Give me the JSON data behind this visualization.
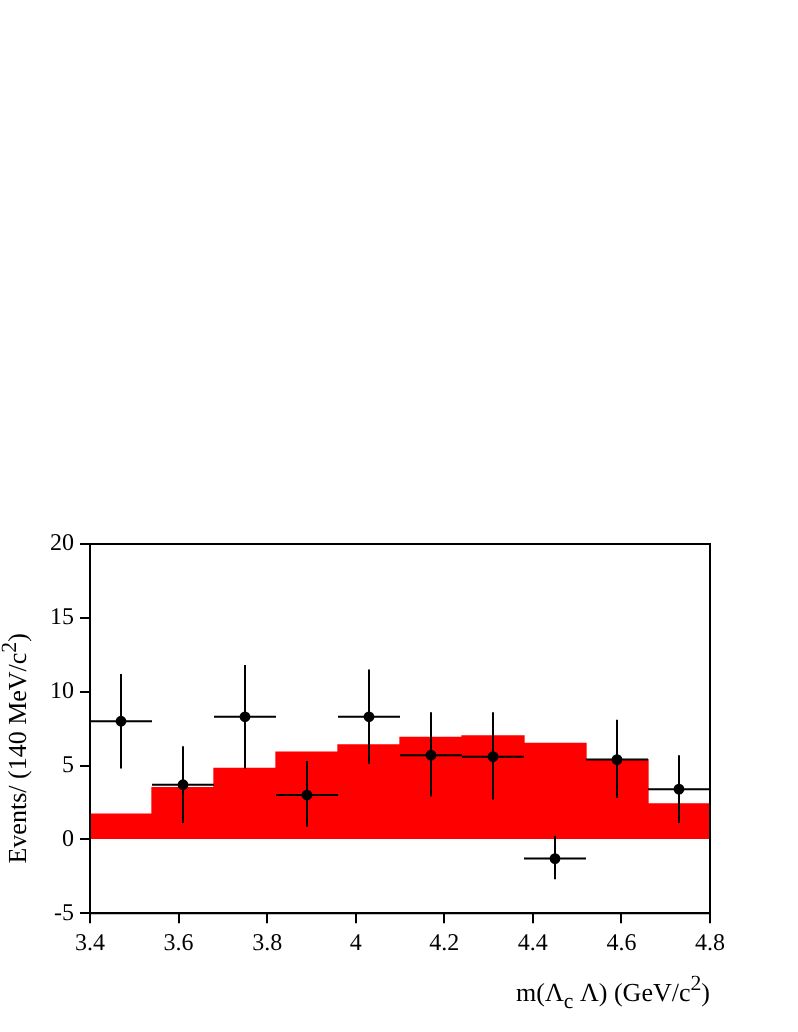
{
  "chart_data": {
    "type": "histogram",
    "xlabel": "m(Λ$_{c}$ Λ) (GeV/c$^{2}$)",
    "ylabel": "Events/ (140 MeV/c$^{2}$)",
    "bins": [
      3.4,
      3.54,
      3.68,
      3.82,
      3.96,
      4.1,
      4.24,
      4.38,
      4.52,
      4.66,
      4.8
    ],
    "series": [
      {
        "color": "#ff0000",
        "values": [
          1.7,
          3.5,
          4.8,
          5.9,
          6.4,
          6.9,
          7.0,
          6.5,
          5.4,
          2.4
        ]
      },
      {
        "type": "scatter",
        "color": "#000000",
        "x": [
          3.47,
          3.61,
          3.75,
          3.89,
          4.03,
          4.17,
          4.31,
          4.45,
          4.59,
          4.73
        ],
        "values": [
          8.0,
          3.7,
          8.3,
          3.0,
          8.3,
          5.7,
          5.6,
          -1.3,
          5.4,
          3.4
        ],
        "errors": [
          [
            4.8,
            11.2
          ],
          [
            1.1,
            6.3
          ],
          [
            4.8,
            11.8
          ],
          [
            0.85,
            5.3
          ],
          [
            5.1,
            11.5
          ],
          [
            2.9,
            8.6
          ],
          [
            2.7,
            8.6
          ],
          [
            -2.7,
            0.25
          ],
          [
            2.8,
            8.1
          ],
          [
            1.1,
            5.7
          ]
        ],
        "xerrors": [
          0.07,
          0.07,
          0.07,
          0.07,
          0.07,
          0.07,
          0.07,
          0.07,
          0.07,
          0.07
        ]
      }
    ],
    "xlim": [
      3.4,
      4.8
    ],
    "xticks": [
      3.4,
      3.6,
      3.8,
      4,
      4.2,
      4.4,
      4.6,
      4.8
    ],
    "ylim": [
      -5,
      20
    ],
    "yticks": [
      -5,
      0,
      5,
      10,
      15,
      20
    ],
    "grid": false,
    "legend": false,
    "marker": "circle"
  }
}
